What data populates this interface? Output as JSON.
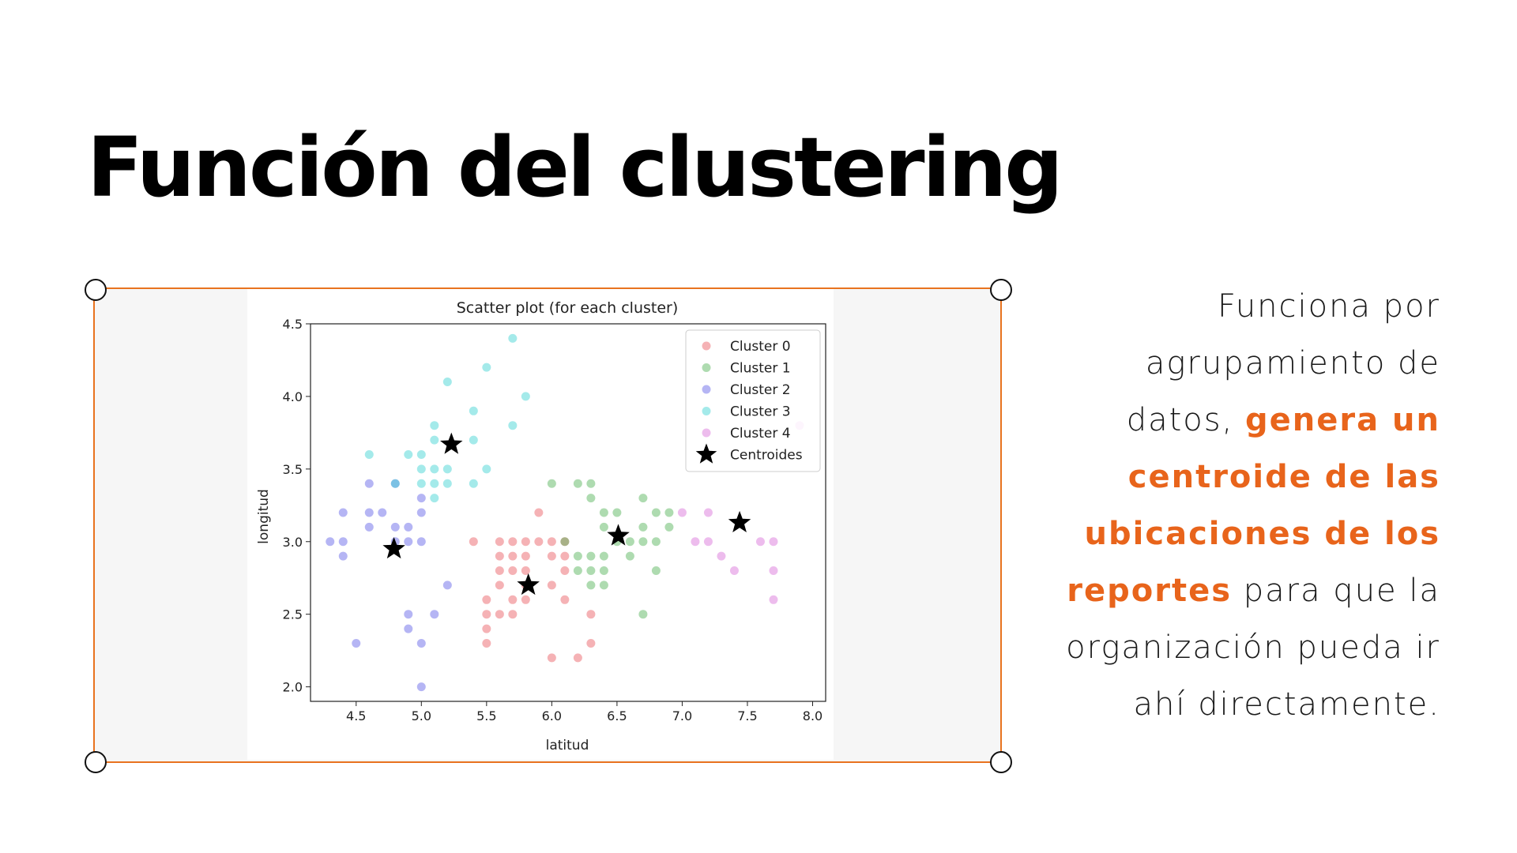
{
  "slide": {
    "title": "Función del clustering",
    "description": {
      "text_before": "Funciona por agrupamiento de datos,",
      "highlight": "genera un centroide de las ubicaciones de los reportes",
      "text_after": "para que la organización pueda ir ahí directamente."
    },
    "accent_color": "#e8641b"
  },
  "chart_data": {
    "type": "scatter",
    "title": "Scatter plot (for each cluster)",
    "xlabel": "latitud",
    "ylabel": "longitud",
    "xlim": [
      4.15,
      8.1
    ],
    "ylim": [
      1.9,
      4.5
    ],
    "xticks": [
      "4.5",
      "5.0",
      "5.5",
      "6.0",
      "6.5",
      "7.0",
      "7.5",
      "8.0"
    ],
    "yticks": [
      "2.0",
      "2.5",
      "3.0",
      "3.5",
      "4.0",
      "4.5"
    ],
    "legend_position": "top-right",
    "series": [
      {
        "name": "Cluster 0",
        "color": "#e8555a",
        "points": [
          [
            5.4,
            3.0
          ],
          [
            5.6,
            3.0
          ],
          [
            5.7,
            3.0
          ],
          [
            5.8,
            3.0
          ],
          [
            5.9,
            3.0
          ],
          [
            6.0,
            3.0
          ],
          [
            6.1,
            3.0
          ],
          [
            5.6,
            2.9
          ],
          [
            5.7,
            2.9
          ],
          [
            5.8,
            2.9
          ],
          [
            6.0,
            2.9
          ],
          [
            6.1,
            2.9
          ],
          [
            5.6,
            2.8
          ],
          [
            5.7,
            2.8
          ],
          [
            5.8,
            2.8
          ],
          [
            6.1,
            2.8
          ],
          [
            5.6,
            2.7
          ],
          [
            5.8,
            2.7
          ],
          [
            6.0,
            2.7
          ],
          [
            5.5,
            2.6
          ],
          [
            5.7,
            2.6
          ],
          [
            5.8,
            2.6
          ],
          [
            6.1,
            2.6
          ],
          [
            5.5,
            2.5
          ],
          [
            5.6,
            2.5
          ],
          [
            5.7,
            2.5
          ],
          [
            6.3,
            2.5
          ],
          [
            5.5,
            2.4
          ],
          [
            5.5,
            2.3
          ],
          [
            6.3,
            2.3
          ],
          [
            6.0,
            2.2
          ],
          [
            6.2,
            2.2
          ],
          [
            5.9,
            3.2
          ]
        ]
      },
      {
        "name": "Cluster 1",
        "color": "#4caf50",
        "points": [
          [
            6.0,
            3.4
          ],
          [
            6.2,
            3.4
          ],
          [
            6.3,
            3.4
          ],
          [
            6.3,
            3.3
          ],
          [
            6.7,
            3.3
          ],
          [
            6.4,
            3.2
          ],
          [
            6.5,
            3.2
          ],
          [
            6.8,
            3.2
          ],
          [
            6.9,
            3.2
          ],
          [
            6.4,
            3.1
          ],
          [
            6.7,
            3.1
          ],
          [
            6.9,
            3.1
          ],
          [
            6.1,
            3.0
          ],
          [
            6.5,
            3.0
          ],
          [
            6.6,
            3.0
          ],
          [
            6.7,
            3.0
          ],
          [
            6.8,
            3.0
          ],
          [
            6.2,
            2.9
          ],
          [
            6.3,
            2.9
          ],
          [
            6.4,
            2.9
          ],
          [
            6.6,
            2.9
          ],
          [
            6.2,
            2.8
          ],
          [
            6.3,
            2.8
          ],
          [
            6.4,
            2.8
          ],
          [
            6.8,
            2.8
          ],
          [
            6.3,
            2.7
          ],
          [
            6.4,
            2.7
          ],
          [
            6.7,
            2.5
          ]
        ]
      },
      {
        "name": "Cluster 2",
        "color": "#5a5ae6",
        "points": [
          [
            4.3,
            3.0
          ],
          [
            4.4,
            3.0
          ],
          [
            4.4,
            2.9
          ],
          [
            4.4,
            3.2
          ],
          [
            4.6,
            3.4
          ],
          [
            4.6,
            3.2
          ],
          [
            4.6,
            3.1
          ],
          [
            4.7,
            3.2
          ],
          [
            4.8,
            3.4
          ],
          [
            4.8,
            3.0
          ],
          [
            4.8,
            3.1
          ],
          [
            4.9,
            3.1
          ],
          [
            4.9,
            3.0
          ],
          [
            5.0,
            3.0
          ],
          [
            5.0,
            3.2
          ],
          [
            5.0,
            3.3
          ],
          [
            4.9,
            2.5
          ],
          [
            4.9,
            2.4
          ],
          [
            5.0,
            2.3
          ],
          [
            5.1,
            2.5
          ],
          [
            5.0,
            2.0
          ],
          [
            4.5,
            2.3
          ],
          [
            5.2,
            2.7
          ]
        ]
      },
      {
        "name": "Cluster 3",
        "color": "#35d0d0",
        "points": [
          [
            5.7,
            4.4
          ],
          [
            5.5,
            4.2
          ],
          [
            5.2,
            4.1
          ],
          [
            5.8,
            4.0
          ],
          [
            5.4,
            3.9
          ],
          [
            5.1,
            3.8
          ],
          [
            5.7,
            3.8
          ],
          [
            5.1,
            3.7
          ],
          [
            5.4,
            3.7
          ],
          [
            4.6,
            3.6
          ],
          [
            4.9,
            3.6
          ],
          [
            5.0,
            3.6
          ],
          [
            5.0,
            3.5
          ],
          [
            5.1,
            3.5
          ],
          [
            5.2,
            3.5
          ],
          [
            5.5,
            3.5
          ],
          [
            5.0,
            3.4
          ],
          [
            5.1,
            3.4
          ],
          [
            5.2,
            3.4
          ],
          [
            5.4,
            3.4
          ],
          [
            5.1,
            3.3
          ],
          [
            4.8,
            3.4
          ]
        ]
      },
      {
        "name": "Cluster 4",
        "color": "#d86ad8",
        "points": [
          [
            7.0,
            3.2
          ],
          [
            7.2,
            3.2
          ],
          [
            7.1,
            3.0
          ],
          [
            7.2,
            3.0
          ],
          [
            7.6,
            3.0
          ],
          [
            7.7,
            3.0
          ],
          [
            7.3,
            2.9
          ],
          [
            7.4,
            2.8
          ],
          [
            7.7,
            2.8
          ],
          [
            7.7,
            2.6
          ],
          [
            7.9,
            3.8
          ]
        ]
      },
      {
        "name": "Centroides",
        "color": "#000000",
        "marker": "star",
        "points": [
          [
            5.23,
            3.67
          ],
          [
            4.79,
            2.95
          ],
          [
            5.82,
            2.7
          ],
          [
            6.51,
            3.04
          ],
          [
            7.44,
            3.13
          ]
        ]
      }
    ]
  }
}
